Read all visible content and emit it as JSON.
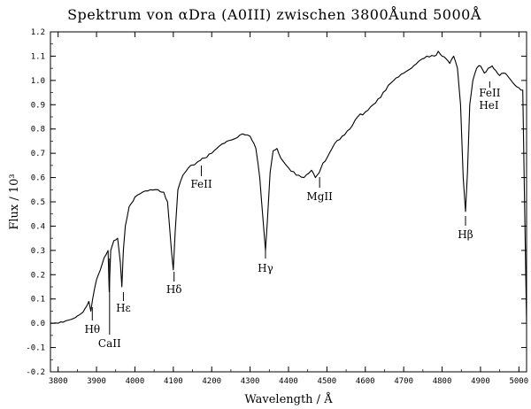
{
  "chart_data": {
    "type": "line",
    "title": "Spektrum von αDra (A0III) zwischen 3800Åund 5000Å",
    "xlabel": "Wavelength / Å",
    "ylabel": "Flux / 10³",
    "xlim": [
      3780,
      5020
    ],
    "ylim": [
      -0.2,
      1.2
    ],
    "x_ticks": [
      3800,
      3900,
      4000,
      4100,
      4200,
      4300,
      4400,
      4500,
      4600,
      4700,
      4800,
      4900,
      5000
    ],
    "y_ticks": [
      -0.2,
      -0.1,
      0,
      0.1,
      0.2,
      0.3,
      0.4,
      0.5,
      0.6,
      0.7,
      0.8,
      0.9,
      1.0,
      1.1,
      1.2
    ],
    "grid": false,
    "series": [
      {
        "x": [
          3780,
          3800,
          3820,
          3840,
          3850,
          3860,
          3870,
          3880,
          3885,
          3890,
          3900,
          3910,
          3920,
          3930,
          3933,
          3937,
          3945,
          3955,
          3962,
          3966,
          3970,
          3975,
          3985,
          4000,
          4020,
          4040,
          4060,
          4075,
          4085,
          4095,
          4100,
          4105,
          4112,
          4125,
          4145,
          4160,
          4170,
          4180,
          4200,
          4220,
          4240,
          4260,
          4280,
          4300,
          4315,
          4325,
          4335,
          4340,
          4345,
          4352,
          4360,
          4370,
          4380,
          4400,
          4420,
          4440,
          4460,
          4470,
          4480,
          4490,
          4500,
          4520,
          4540,
          4560,
          4580,
          4600,
          4620,
          4640,
          4660,
          4680,
          4700,
          4720,
          4740,
          4760,
          4780,
          4790,
          4800,
          4810,
          4820,
          4830,
          4840,
          4848,
          4855,
          4861,
          4866,
          4872,
          4880,
          4890,
          4900,
          4910,
          4920,
          4930,
          4940,
          4950,
          4960,
          4970,
          4980,
          4990,
          5000,
          5010,
          5020
        ],
        "values": [
          0.0,
          0.0,
          0.01,
          0.02,
          0.03,
          0.04,
          0.06,
          0.09,
          0.05,
          0.1,
          0.18,
          0.22,
          0.27,
          0.3,
          0.13,
          0.3,
          0.34,
          0.35,
          0.25,
          0.15,
          0.3,
          0.4,
          0.48,
          0.52,
          0.54,
          0.55,
          0.55,
          0.54,
          0.5,
          0.3,
          0.22,
          0.38,
          0.55,
          0.61,
          0.65,
          0.66,
          0.67,
          0.68,
          0.7,
          0.73,
          0.75,
          0.76,
          0.78,
          0.77,
          0.72,
          0.6,
          0.4,
          0.3,
          0.42,
          0.62,
          0.71,
          0.72,
          0.68,
          0.64,
          0.61,
          0.6,
          0.63,
          0.6,
          0.62,
          0.66,
          0.68,
          0.74,
          0.77,
          0.8,
          0.85,
          0.87,
          0.9,
          0.93,
          0.98,
          1.01,
          1.03,
          1.05,
          1.08,
          1.1,
          1.1,
          1.12,
          1.1,
          1.09,
          1.07,
          1.1,
          1.05,
          0.9,
          0.6,
          0.46,
          0.62,
          0.9,
          1.0,
          1.05,
          1.06,
          1.03,
          1.05,
          1.06,
          1.04,
          1.02,
          1.03,
          1.02,
          1.0,
          0.98,
          0.97,
          0.96,
          0.0
        ]
      }
    ],
    "annotations": [
      {
        "text": "Hθ",
        "x": 3889
      },
      {
        "text": "CaII",
        "x": 3934
      },
      {
        "text": "Hε",
        "x": 3970
      },
      {
        "text": "Hδ",
        "x": 4102
      },
      {
        "text": "FeII",
        "x": 4173
      },
      {
        "text": "Hγ",
        "x": 4340
      },
      {
        "text": "MgII",
        "x": 4481
      },
      {
        "text": "Hβ",
        "x": 4861
      },
      {
        "text": "FeII",
        "x": 4924
      },
      {
        "text": "HeI",
        "x": 4922
      }
    ]
  }
}
